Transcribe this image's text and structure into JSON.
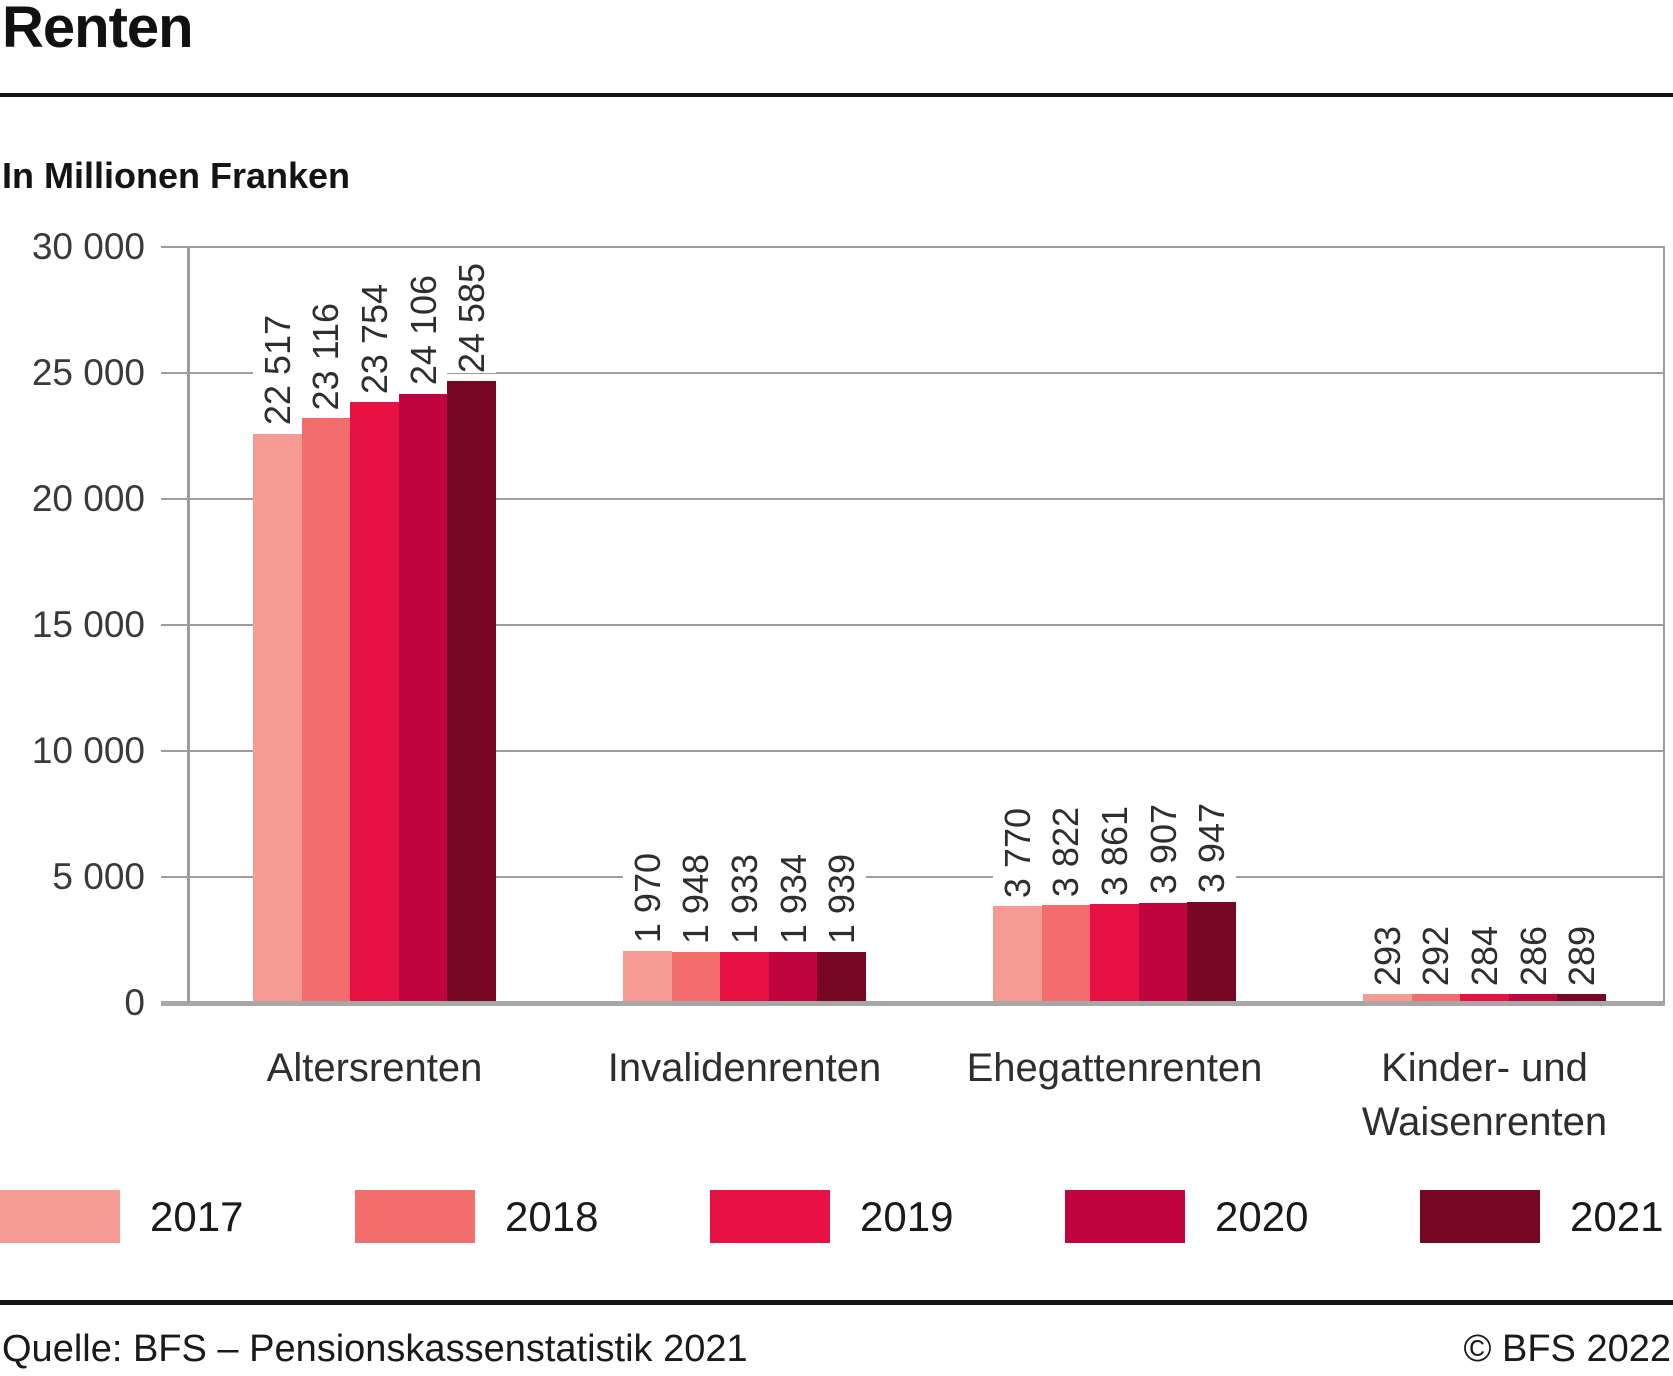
{
  "header": {
    "title": "Renten"
  },
  "chart_data": {
    "type": "bar",
    "title": "Renten",
    "unit_label": "In Millionen Franken",
    "xlabel": "",
    "ylabel": "In Millionen Franken",
    "categories": [
      "Altersrenten",
      "Invalidenrenten",
      "Ehegattenrenten",
      "Kinder- und\nWaisenrenten"
    ],
    "series": [
      {
        "name": "2017",
        "color": "#F59B94",
        "values": [
          22517,
          1970,
          3770,
          293
        ],
        "labels": [
          "22 517",
          "1 970",
          "3 770",
          "293"
        ]
      },
      {
        "name": "2018",
        "color": "#F26D6B",
        "values": [
          23116,
          1948,
          3822,
          292
        ],
        "labels": [
          "23 116",
          "1 948",
          "3 822",
          "292"
        ]
      },
      {
        "name": "2019",
        "color": "#E81143",
        "values": [
          23754,
          1933,
          3861,
          284
        ],
        "labels": [
          "23 754",
          "1 933",
          "3 861",
          "284"
        ]
      },
      {
        "name": "2020",
        "color": "#C00440",
        "values": [
          24106,
          1934,
          3907,
          286
        ],
        "labels": [
          "24 106",
          "1 934",
          "3 907",
          "286"
        ]
      },
      {
        "name": "2021",
        "color": "#770723",
        "values": [
          24585,
          1939,
          3947,
          289
        ],
        "labels": [
          "24 585",
          "1 939",
          "3 947",
          "289"
        ]
      }
    ],
    "ylim": [
      0,
      30000
    ],
    "ytick_step": 5000,
    "ytick_labels": [
      "30 000",
      "25 000",
      "20 000",
      "15 000",
      "10 000",
      "5 000",
      "0"
    ],
    "grid": true,
    "legend_position": "bottom",
    "bar_label_rotation": 90,
    "grid_color": "#9D9D9D"
  },
  "footer": {
    "source": "Quelle: BFS – Pensionskassenstatistik 2021",
    "copyright": "© BFS 2022"
  }
}
